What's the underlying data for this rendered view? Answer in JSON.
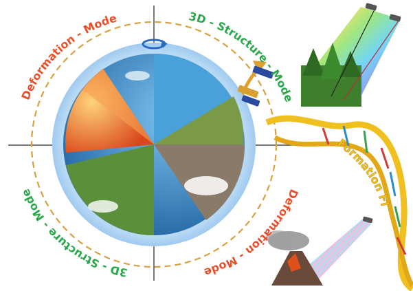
{
  "labels": {
    "deformation_top": "Deformation - Mode",
    "structure_top": "3D - Structure - Mode",
    "structure_bottom": "3D - Structure - Mode",
    "deformation_bottom": "Deformation - Mode",
    "formation_flight": "Formation Flight"
  },
  "colors": {
    "deformation": "#e8502a",
    "structure": "#2aa84a",
    "formation": "#f0c020",
    "orbit": "#d9a040",
    "axis": "#222222",
    "ocean": "#3a8fd0",
    "land": "#5c8f3a",
    "magma": "#f07a2a"
  },
  "icons": {
    "rotation": "rotation-arrow-icon",
    "orbit_arrow": "orbit-direction-arrow-icon",
    "satellite": "satellite-icon",
    "volcano": "volcano-icon",
    "forest": "forest-icon",
    "dna": "dna-helix-icon"
  }
}
